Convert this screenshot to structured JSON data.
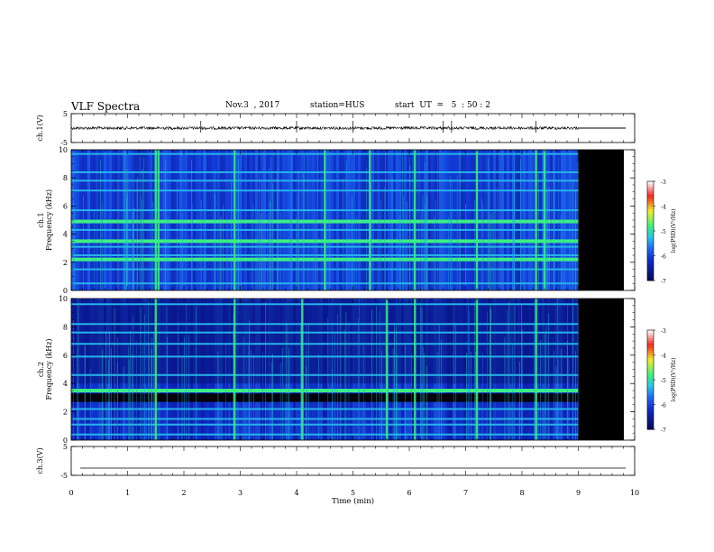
{
  "header": {
    "title": "VLF Spectra",
    "date": "Nov.3  , 2017",
    "station": "station=HUS",
    "start": "start  UT  =   5  : 50 : 2"
  },
  "colors": {
    "spectrogram_low": "#0a1470",
    "spectrogram_mid": "#1e6cf0",
    "spectrogram_high": "#2ef08a",
    "no_data": "#000000"
  },
  "chart_data": [
    {
      "type": "line",
      "panel": "ch1-waveform",
      "ylabel": "ch.1(V)",
      "ylim": [
        -5,
        5
      ],
      "yticks": [
        "5",
        "-5"
      ],
      "xlim": [
        0,
        10
      ],
      "data_end_min": 9.0,
      "baseline_v": 0,
      "spikes_min": [
        2.3,
        4.0,
        5.0,
        6.6,
        6.75,
        8.25
      ]
    },
    {
      "type": "heatmap",
      "panel": "ch1-spectrogram",
      "ylabel": "ch.1",
      "ylabel2": "Frequency  (kHz)",
      "ylim": [
        0,
        10
      ],
      "yticks": [
        "0",
        "2",
        "4",
        "6",
        "8",
        "10"
      ],
      "xlim": [
        0,
        10
      ],
      "data_end_min": 9.0,
      "bands_khz": [
        0.5,
        1.5,
        2.2,
        2.5,
        3.1,
        3.5,
        4.3,
        4.9,
        5.7,
        7.1,
        7.8,
        8.4,
        9.7
      ],
      "bright_bands_khz": [
        2.2,
        3.5,
        4.9
      ],
      "bursts_min": [
        1.5,
        1.55,
        2.9,
        4.5,
        5.3,
        6.1,
        7.2,
        8.25,
        8.4
      ],
      "colorbar": {
        "label": "log(PSD)(V²/Hz)",
        "range": [
          -7,
          -3
        ],
        "ticks": [
          "-3",
          "-4",
          "-5",
          "-6",
          "-7"
        ]
      }
    },
    {
      "type": "heatmap",
      "panel": "ch2-spectrogram",
      "ylabel": "ch.2",
      "ylabel2": "Frequency  (kHz)",
      "ylim": [
        0,
        10
      ],
      "yticks": [
        "0",
        "2",
        "4",
        "6",
        "8",
        "10"
      ],
      "xlim": [
        0,
        10
      ],
      "data_end_min": 9.0,
      "bands_khz": [
        0.4,
        1.1,
        1.5,
        2.2,
        3.5,
        4.6,
        5.9,
        6.8,
        7.6,
        8.2,
        9.6
      ],
      "bright_bands_khz": [
        3.5
      ],
      "dark_bands_khz": [
        [
          2.7,
          3.3
        ]
      ],
      "bursts_min": [
        1.5,
        2.9,
        4.1,
        5.6,
        6.1,
        7.2,
        8.25
      ],
      "colorbar": {
        "label": "log(PSD)(V²/Hz)",
        "range": [
          -7,
          -3
        ],
        "ticks": [
          "-3",
          "-4",
          "-5",
          "-6",
          "-7"
        ]
      }
    },
    {
      "type": "line",
      "panel": "ch3-waveform",
      "ylabel": "ch.3(V)",
      "ylim": [
        -5,
        5
      ],
      "yticks": [
        "5",
        "-5"
      ],
      "xlim": [
        0,
        10
      ],
      "baseline_v": -2.5
    }
  ],
  "xaxis": {
    "label": "Time  (min)",
    "ticks": [
      "0",
      "1",
      "2",
      "3",
      "4",
      "5",
      "6",
      "7",
      "8",
      "9",
      "10"
    ]
  }
}
